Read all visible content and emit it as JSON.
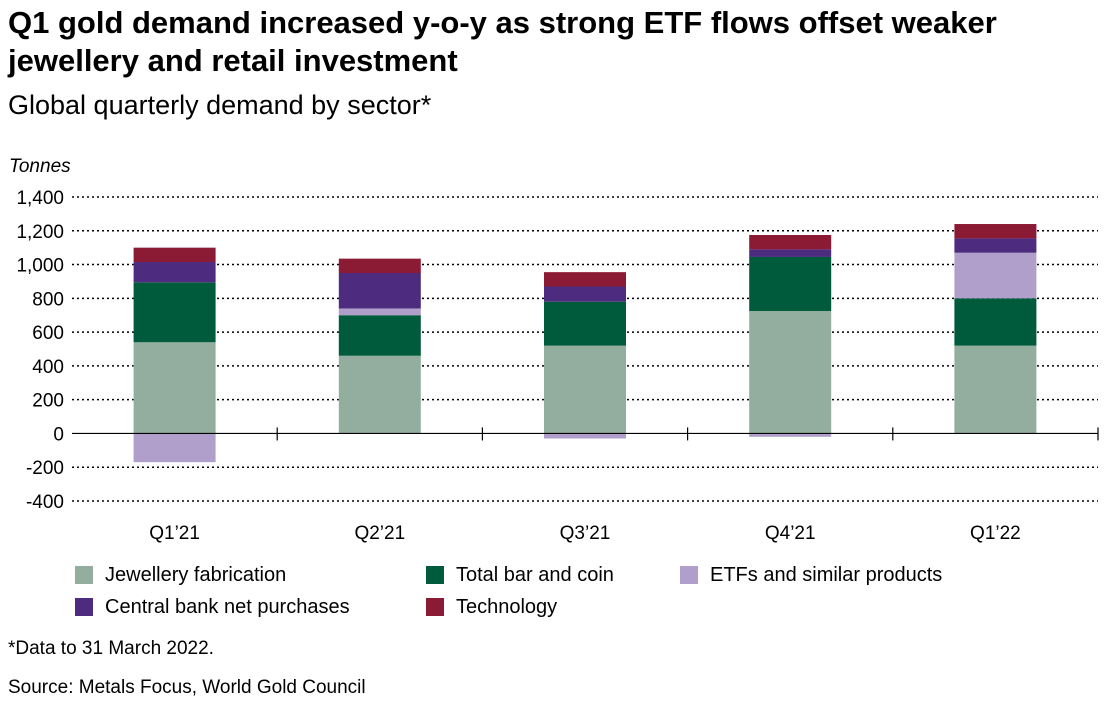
{
  "title": "Q1 gold demand increased y-o-y as strong ETF flows offset weaker jewellery and retail investment",
  "subtitle": "Global quarterly demand by sector*",
  "footnote": "*Data to 31 March 2022.",
  "source": "Source: Metals Focus, World Gold Council",
  "chart_data": {
    "type": "bar",
    "stacked": true,
    "ylabel": "Tonnes",
    "xlabel": "",
    "ylim": [
      -400,
      1400
    ],
    "yticks": [
      1400,
      1200,
      1000,
      800,
      600,
      400,
      200,
      0,
      -200,
      -400
    ],
    "ytick_labels": [
      "1,400",
      "1,200",
      "1,000",
      "800",
      "600",
      "400",
      "200",
      "0",
      "-200",
      "-400"
    ],
    "grid": "horizontal dotted",
    "legend_position": "bottom",
    "categories": [
      "Q1’21",
      "Q2’21",
      "Q3’21",
      "Q4’21",
      "Q1’22"
    ],
    "series": [
      {
        "name": "Jewellery fabrication",
        "color": "#93ae9f",
        "values": [
          540,
          460,
          520,
          725,
          520
        ]
      },
      {
        "name": "Total bar and coin",
        "color": "#005a3c",
        "values": [
          355,
          240,
          260,
          320,
          280
        ]
      },
      {
        "name": "ETFs and similar products",
        "color": "#b09fcb",
        "values": [
          -170,
          40,
          -30,
          -20,
          270
        ]
      },
      {
        "name": "Central bank net purchases",
        "color": "#4d2c7f",
        "values": [
          120,
          210,
          90,
          45,
          85
        ]
      },
      {
        "name": "Technology",
        "color": "#8b1a35",
        "values": [
          85,
          85,
          85,
          85,
          85
        ]
      }
    ]
  }
}
